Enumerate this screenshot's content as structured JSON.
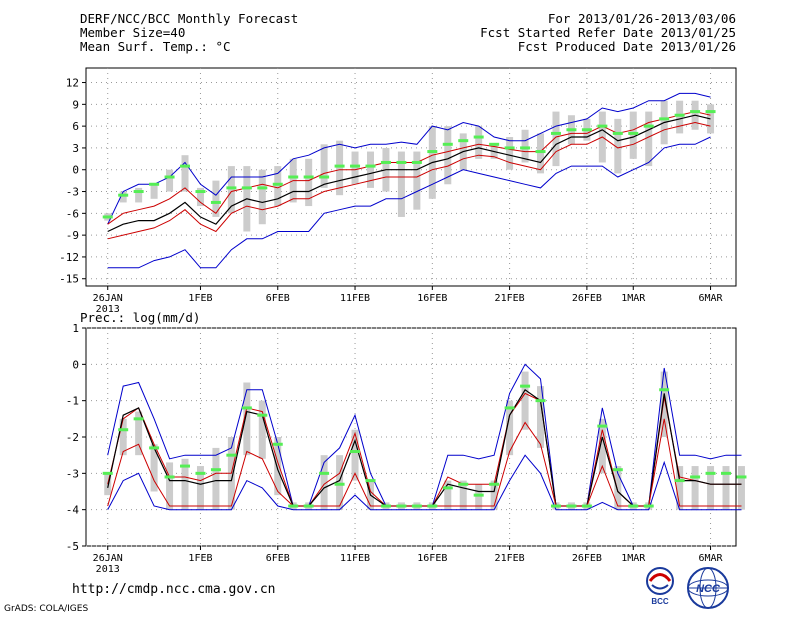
{
  "header": {
    "left": [
      "DERF/NCC/BCC Monthly Forecast",
      "Member Size=40",
      "Mean Surf. Temp.: °C"
    ],
    "right": [
      "For 2013/01/26-2013/03/06",
      "Fcst Started Refer Date 2013/01/25",
      "Fcst Produced Date 2013/01/26"
    ]
  },
  "footer": {
    "url": "http://cmdp.ncc.cma.gov.cn",
    "credit": "GrADS: COLA/IGES"
  },
  "logos": {
    "bcc": "BCC",
    "ncc": "NCC"
  },
  "colors": {
    "blue": "#0000cc",
    "red": "#cc0000",
    "black": "#000000",
    "green": "#55ee55",
    "box": "#cccccc",
    "grid": "#999999"
  },
  "chart_data": [
    {
      "type": "line",
      "title": "Mean Surf. Temp.: °C",
      "xlabel": "",
      "ylabel": "°C",
      "ylim": [
        -16,
        14
      ],
      "yticks": [
        12,
        9,
        6,
        3,
        0,
        -3,
        -6,
        -9,
        -12,
        -15
      ],
      "x_tick_positions": [
        0,
        6,
        11,
        16,
        21,
        26,
        31,
        34,
        39
      ],
      "x_tick_labels": [
        "26JAN",
        "1FEB",
        "6FEB",
        "11FEB",
        "16FEB",
        "21FEB",
        "26FEB",
        "1MAR",
        "6MAR"
      ],
      "x_year_label": "2013",
      "series": [
        {
          "name": "max",
          "color": "blue",
          "values": [
            -7.5,
            -3,
            -2,
            -2,
            -1,
            1,
            -2,
            -3.5,
            -1,
            -1,
            -1,
            -0.5,
            1.5,
            2,
            3,
            3.5,
            3,
            3.5,
            3.5,
            3.8,
            3.5,
            6,
            5.5,
            6.5,
            6,
            4.5,
            4,
            4,
            5,
            6,
            6.5,
            7,
            8.5,
            8,
            8.5,
            9.5,
            9.5,
            10.5,
            10.5,
            10
          ]
        },
        {
          "name": "upper",
          "color": "red",
          "values": [
            -7.5,
            -6,
            -5.5,
            -5,
            -4,
            -2.5,
            -4.5,
            -6,
            -3,
            -2.5,
            -2,
            -2.5,
            -1.5,
            -1.5,
            -0.5,
            0,
            0,
            0.5,
            1,
            1,
            1,
            2,
            2.5,
            3,
            3.5,
            3.2,
            2.8,
            2.5,
            2.5,
            4.5,
            5,
            5,
            6,
            5,
            5.5,
            6.5,
            7,
            7.5,
            8,
            7.5
          ]
        },
        {
          "name": "mean",
          "color": "black",
          "values": [
            -8.5,
            -7.5,
            -7,
            -7,
            -6,
            -4.5,
            -6.5,
            -7.5,
            -5,
            -4,
            -4.5,
            -4,
            -3,
            -3,
            -2,
            -1.5,
            -1,
            -0.5,
            0,
            0,
            0,
            1,
            1.5,
            2.5,
            3,
            2.5,
            2,
            1.5,
            1,
            3.5,
            4.5,
            4.5,
            5.5,
            4,
            4.5,
            5.5,
            6.5,
            7,
            7.5,
            7
          ]
        },
        {
          "name": "lower",
          "color": "red",
          "values": [
            -9.5,
            -9,
            -8.5,
            -8,
            -7,
            -5.5,
            -7.5,
            -8.5,
            -6,
            -5,
            -5.5,
            -5,
            -4,
            -4,
            -3,
            -2.5,
            -2,
            -1.5,
            -1,
            -1,
            -1,
            0,
            0.5,
            1.5,
            2,
            1.8,
            1,
            0.5,
            0,
            2.5,
            3.5,
            3.5,
            4.5,
            3,
            3.5,
            4.5,
            5.5,
            6,
            6.5,
            6
          ]
        },
        {
          "name": "min",
          "color": "blue",
          "values": [
            -13.5,
            -13.5,
            -13.5,
            -12.5,
            -12,
            -11,
            -13.5,
            -13.5,
            -11,
            -9.5,
            -9.5,
            -8.5,
            -8.5,
            -8.5,
            -6,
            -5.5,
            -5,
            -5,
            -4,
            -4,
            -3,
            -2,
            -1,
            0,
            -0.5,
            -1,
            -1.5,
            -2,
            -2.5,
            -0.5,
            0.5,
            0.5,
            0.5,
            -1,
            0,
            1,
            3,
            3.5,
            3.5,
            4.5
          ]
        },
        {
          "name": "ensemble-mean",
          "color": "green",
          "style": "dash",
          "values": [
            -6.5,
            -3.5,
            -3,
            -2,
            -1,
            0.5,
            -3,
            -4.5,
            -2.5,
            -2.5,
            -2.5,
            -2,
            -1,
            -1,
            -1,
            0.5,
            0.5,
            0.5,
            1,
            1,
            1,
            2.5,
            3.5,
            4,
            4.5,
            3.5,
            3,
            3,
            2.5,
            5,
            5.5,
            5.5,
            6,
            5,
            5,
            6,
            7,
            7.5,
            8,
            8
          ]
        },
        {
          "name": "box-top",
          "color": "box",
          "values": [
            -6,
            -3,
            -2.5,
            -2,
            0,
            2,
            -2.5,
            -1.5,
            0.5,
            0.5,
            0,
            0.5,
            1.5,
            1.5,
            3.5,
            4,
            2.5,
            2.5,
            3,
            2.5,
            2.5,
            6,
            6,
            5,
            6,
            3.5,
            4.5,
            5.5,
            5,
            8,
            7.5,
            7,
            8,
            7,
            8,
            8,
            9.5,
            9.5,
            9.5,
            9
          ]
        },
        {
          "name": "box-bottom",
          "color": "box",
          "values": [
            -7,
            -4.5,
            -4.5,
            -4,
            -3,
            -3,
            -5,
            -6.5,
            -6,
            -8.5,
            -7.5,
            -5,
            -4.5,
            -5,
            -2.5,
            -3.5,
            -2,
            -2.5,
            -3,
            -6.5,
            -5.5,
            -4,
            -2,
            0,
            1.5,
            1.5,
            0,
            1,
            -0.5,
            0.5,
            3.5,
            4,
            1,
            -0.5,
            1.5,
            0.5,
            3.5,
            5,
            5.5,
            5
          ]
        }
      ]
    },
    {
      "type": "line",
      "title": "Prec.: log(mm/d)",
      "xlabel": "",
      "ylabel": "log(mm/d)",
      "ylim": [
        -5,
        1
      ],
      "yticks": [
        1,
        0,
        -1,
        -2,
        -3,
        -4,
        -5
      ],
      "x_tick_positions": [
        0,
        6,
        11,
        16,
        21,
        26,
        31,
        34,
        39
      ],
      "x_tick_labels": [
        "26JAN",
        "1FEB",
        "6FEB",
        "11FEB",
        "16FEB",
        "21FEB",
        "26FEB",
        "1MAR",
        "6MAR"
      ],
      "x_year_label": "2013",
      "series": [
        {
          "name": "max",
          "color": "blue",
          "values": [
            -2.5,
            -0.6,
            -0.5,
            -1.5,
            -2.6,
            -2.5,
            -2.5,
            -2.5,
            -2.3,
            -0.7,
            -0.7,
            -2.2,
            -3.9,
            -3.9,
            -2.7,
            -2.3,
            -1.4,
            -3,
            -3.9,
            -3.9,
            -3.9,
            -3.9,
            -2.5,
            -2.5,
            -2.6,
            -2.5,
            -0.8,
            0,
            -0.4,
            -3.9,
            -3.9,
            -3.9,
            -1.2,
            -3,
            -3.9,
            -3.9,
            -0.1,
            -2.5,
            -2.5,
            -2.6,
            -2.5,
            -2.5
          ]
        },
        {
          "name": "upper",
          "color": "red",
          "values": [
            -3.3,
            -1.5,
            -1.2,
            -2.2,
            -3.1,
            -3.1,
            -3.2,
            -3,
            -3,
            -1.2,
            -1.3,
            -2.7,
            -3.9,
            -3.9,
            -3.3,
            -3,
            -1.9,
            -3.5,
            -3.9,
            -3.9,
            -3.9,
            -3.9,
            -3.1,
            -3.3,
            -3.3,
            -3.3,
            -1.4,
            -0.8,
            -1,
            -3.9,
            -3.9,
            -3.9,
            -1.8,
            -3.5,
            -3.9,
            -3.9,
            -0.9,
            -3.1,
            -3.2,
            -3.3,
            -3.3,
            -3.3
          ]
        },
        {
          "name": "mean",
          "color": "black",
          "values": [
            -3.4,
            -1.4,
            -1.2,
            -2.3,
            -3.2,
            -3.2,
            -3.3,
            -3.2,
            -3.2,
            -1.3,
            -1.4,
            -2.9,
            -3.9,
            -3.9,
            -3.4,
            -3.2,
            -2.1,
            -3.6,
            -3.9,
            -3.9,
            -3.9,
            -3.9,
            -3.3,
            -3.4,
            -3.5,
            -3.5,
            -1.4,
            -0.7,
            -1,
            -3.9,
            -3.9,
            -3.9,
            -2,
            -3.5,
            -3.9,
            -3.9,
            -0.8,
            -3.2,
            -3.2,
            -3.3,
            -3.3,
            -3.3
          ]
        },
        {
          "name": "lower",
          "color": "red",
          "values": [
            -3.9,
            -2.4,
            -2.2,
            -3.2,
            -3.9,
            -3.9,
            -3.9,
            -3.9,
            -3.9,
            -2.4,
            -2.6,
            -3.5,
            -3.9,
            -3.9,
            -3.9,
            -3.9,
            -3,
            -3.9,
            -3.9,
            -3.9,
            -3.9,
            -3.9,
            -3.9,
            -3.9,
            -3.9,
            -3.9,
            -2.4,
            -1.6,
            -2.2,
            -3.9,
            -3.9,
            -3.9,
            -2.8,
            -3.9,
            -3.9,
            -3.9,
            -1.5,
            -3.9,
            -3.9,
            -3.9,
            -3.9,
            -3.9
          ]
        },
        {
          "name": "min",
          "color": "blue",
          "values": [
            -4,
            -3.2,
            -3,
            -3.9,
            -4,
            -4,
            -4,
            -4,
            -4,
            -3.2,
            -3.4,
            -3.9,
            -4,
            -4,
            -4,
            -4,
            -3.6,
            -4,
            -4,
            -4,
            -4,
            -4,
            -4,
            -4,
            -4,
            -4,
            -3.2,
            -2.5,
            -3,
            -4,
            -4,
            -4,
            -3.8,
            -4,
            -4,
            -4,
            -2.7,
            -4,
            -4,
            -4,
            -4,
            -4
          ]
        },
        {
          "name": "ensemble-mean",
          "color": "green",
          "style": "dash",
          "values": [
            -3,
            -1.8,
            -1.5,
            -2.3,
            -3.1,
            -2.8,
            -3,
            -2.9,
            -2.5,
            -1.2,
            -1.4,
            -2.2,
            -3.9,
            -3.9,
            -3,
            -3.3,
            -2.4,
            -3.2,
            -3.9,
            -3.9,
            -3.9,
            -3.9,
            -3.4,
            -3.3,
            -3.6,
            -3.3,
            -1.2,
            -0.6,
            -1,
            -3.9,
            -3.9,
            -3.9,
            -1.7,
            -2.9,
            -3.9,
            -3.9,
            -0.7,
            -3.2,
            -3.1,
            -3,
            -3,
            -3.1
          ]
        },
        {
          "name": "box-top",
          "color": "box",
          "values": [
            -3,
            -1.5,
            -1.3,
            -2.2,
            -2.7,
            -2.6,
            -2.8,
            -2.3,
            -2,
            -0.5,
            -1,
            -2,
            -3.8,
            -3.8,
            -2.5,
            -2.5,
            -1.8,
            -3.2,
            -3.8,
            -3.8,
            -3.8,
            -3.8,
            -3.2,
            -3.2,
            -3.3,
            -3.2,
            -1,
            -0.2,
            -0.6,
            -3.8,
            -3.8,
            -3.8,
            -1.5,
            -2.8,
            -3.8,
            -3.8,
            -0.2,
            -2.8,
            -2.8,
            -2.8,
            -2.8,
            -2.8
          ]
        },
        {
          "name": "box-bottom",
          "color": "box",
          "values": [
            -3.6,
            -2.5,
            -2.5,
            -3.5,
            -4,
            -4,
            -4,
            -4,
            -4,
            -2.5,
            -2.6,
            -3.6,
            -4,
            -4,
            -4,
            -4,
            -3.2,
            -4,
            -4,
            -4,
            -4,
            -4,
            -4,
            -4,
            -4,
            -4,
            -2.5,
            -1.8,
            -2.3,
            -4,
            -4,
            -4,
            -3,
            -4,
            -4,
            -4,
            -2,
            -4,
            -4,
            -4,
            -4,
            -4
          ]
        }
      ]
    }
  ]
}
